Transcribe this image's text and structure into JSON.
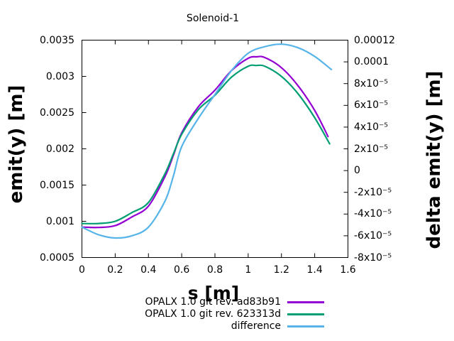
{
  "chart_data": {
    "type": "line",
    "title": "Solenoid-1",
    "xlabel": "s [m]",
    "ylabel_left": "emit(y) [m]",
    "ylabel_right": "delta emit(y) [m]",
    "grid": false,
    "legend_position": "below",
    "x_axis": {
      "min": 0,
      "max": 1.6,
      "ticks": [
        0,
        0.2,
        0.4,
        0.6,
        0.8,
        1.0,
        1.2,
        1.4,
        1.6
      ],
      "tick_labels": [
        "0",
        "0.2",
        "0.4",
        "0.6",
        "0.8",
        "1",
        "1.2",
        "1.4",
        "1.6"
      ]
    },
    "y_left_axis": {
      "min": 0.0005,
      "max": 0.0035,
      "ticks": [
        0.0005,
        0.001,
        0.0015,
        0.002,
        0.0025,
        0.003,
        0.0035
      ],
      "tick_labels": [
        "0.0005",
        "0.001",
        "0.0015",
        "0.002",
        "0.0025",
        "0.003",
        "0.0035"
      ]
    },
    "y_right_axis": {
      "min": -8e-05,
      "max": 0.00012,
      "ticks": [
        -8e-05,
        -6e-05,
        -4e-05,
        -2e-05,
        0,
        2e-05,
        4e-05,
        6e-05,
        8e-05,
        0.0001,
        0.00012
      ],
      "tick_labels": [
        "-8x10⁻⁵",
        "-6x10⁻⁵",
        "-4x10⁻⁵",
        "-2x10⁻⁵",
        "0",
        "2x10⁻⁵",
        "4x10⁻⁵",
        "6x10⁻⁵",
        "8x10⁻⁵",
        "0.0001",
        "0.00012"
      ]
    },
    "series": [
      {
        "name": "OPALX 1.0 git rev. ad83b91",
        "color": "#9400d3",
        "axis": "left",
        "points": [
          [
            0.0,
            0.00092
          ],
          [
            0.1,
            0.000915
          ],
          [
            0.2,
            0.00094
          ],
          [
            0.3,
            0.00106
          ],
          [
            0.4,
            0.00121
          ],
          [
            0.5,
            0.00162
          ],
          [
            0.55,
            0.00191
          ],
          [
            0.6,
            0.00222
          ],
          [
            0.7,
            0.00258
          ],
          [
            0.8,
            0.00281
          ],
          [
            0.9,
            0.00308
          ],
          [
            1.0,
            0.00325
          ],
          [
            1.05,
            0.00327
          ],
          [
            1.1,
            0.00326
          ],
          [
            1.2,
            0.00312
          ],
          [
            1.3,
            0.00287
          ],
          [
            1.4,
            0.00253
          ],
          [
            1.48,
            0.00217
          ]
        ]
      },
      {
        "name": "OPALX 1.0 git rev. 623313d",
        "color": "#009e73",
        "axis": "left",
        "points": [
          [
            0.0,
            0.00097
          ],
          [
            0.1,
            0.00097
          ],
          [
            0.2,
            0.001
          ],
          [
            0.3,
            0.00112
          ],
          [
            0.4,
            0.00126
          ],
          [
            0.5,
            0.00166
          ],
          [
            0.55,
            0.00193
          ],
          [
            0.6,
            0.0022
          ],
          [
            0.7,
            0.00254
          ],
          [
            0.8,
            0.00274
          ],
          [
            0.9,
            0.00299
          ],
          [
            1.0,
            0.00314
          ],
          [
            1.05,
            0.00315
          ],
          [
            1.1,
            0.00314
          ],
          [
            1.2,
            0.003
          ],
          [
            1.3,
            0.00276
          ],
          [
            1.4,
            0.00243
          ],
          [
            1.49,
            0.00207
          ]
        ]
      },
      {
        "name": "difference",
        "color": "#56b4e9",
        "axis": "right",
        "points": [
          [
            0.0,
            -5.2e-05
          ],
          [
            0.1,
            -5.9e-05
          ],
          [
            0.2,
            -6.2e-05
          ],
          [
            0.3,
            -6e-05
          ],
          [
            0.4,
            -5.2e-05
          ],
          [
            0.5,
            -2.8e-05
          ],
          [
            0.55,
            -5e-06
          ],
          [
            0.6,
            2.2e-05
          ],
          [
            0.7,
            4.8e-05
          ],
          [
            0.8,
            7e-05
          ],
          [
            0.9,
            9.2e-05
          ],
          [
            1.0,
            0.000108
          ],
          [
            1.1,
            0.000114
          ],
          [
            1.2,
            0.0001163
          ],
          [
            1.3,
            0.000113
          ],
          [
            1.4,
            0.000105
          ],
          [
            1.5,
            9.3e-05
          ]
        ]
      }
    ]
  }
}
